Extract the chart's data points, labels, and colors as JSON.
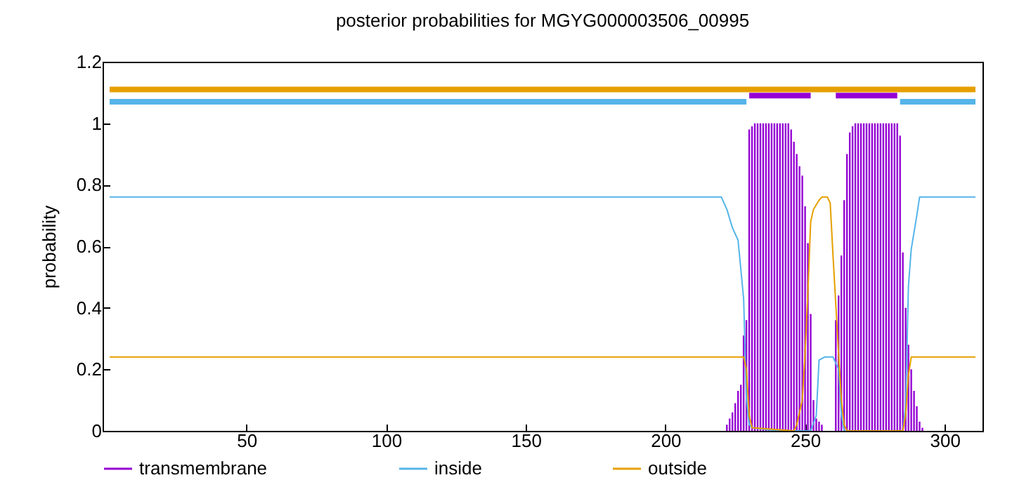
{
  "chart_data": {
    "type": "line",
    "title": "posterior probabilities for MGYG000003506_00995",
    "ylabel": "probability",
    "xlim": [
      1,
      311
    ],
    "xticks": [
      50,
      100,
      150,
      200,
      250,
      300
    ],
    "ylim": [
      0,
      1.2
    ],
    "yticks": [
      0,
      0.2,
      0.4,
      0.6,
      0.8,
      1,
      1.2
    ],
    "legend": "bottom",
    "series": [
      {
        "name": "transmembrane",
        "type": "bar",
        "color": "#9400d3",
        "x": [
          222,
          223,
          224,
          225,
          226,
          227,
          228,
          229,
          230,
          231,
          232,
          233,
          234,
          235,
          236,
          237,
          238,
          239,
          240,
          241,
          242,
          243,
          244,
          245,
          246,
          247,
          248,
          249,
          250,
          251,
          252,
          253,
          254,
          255,
          256,
          261,
          262,
          263,
          264,
          265,
          266,
          267,
          268,
          269,
          270,
          271,
          272,
          273,
          274,
          275,
          276,
          277,
          278,
          279,
          280,
          281,
          282,
          283,
          284,
          285,
          286,
          287,
          288,
          289,
          290,
          291,
          292
        ],
        "values": [
          0.02,
          0.04,
          0.06,
          0.09,
          0.13,
          0.15,
          0.31,
          0.36,
          0.98,
          0.99,
          1,
          1,
          1,
          1,
          1,
          1,
          1,
          1,
          1,
          1,
          1,
          1,
          1,
          0.98,
          0.94,
          0.9,
          0.86,
          0.83,
          0.73,
          0.61,
          0.38,
          0.1,
          0.04,
          0.03,
          0.02,
          0.36,
          0.44,
          0.57,
          0.75,
          0.9,
          0.97,
          0.99,
          1,
          1,
          1,
          1,
          1,
          1,
          1,
          1,
          1,
          1,
          1,
          1,
          1,
          1,
          1,
          1,
          0.96,
          0.58,
          0.4,
          0.28,
          0.2,
          0.13,
          0.08,
          0.03,
          0.01
        ]
      },
      {
        "name": "inside",
        "color": "#56b4e9",
        "x": [
          1,
          220,
          222,
          224,
          226,
          228,
          229,
          230,
          231,
          240,
          252,
          254,
          255,
          257,
          260,
          262,
          263,
          264,
          285,
          286,
          287,
          288,
          290,
          291,
          311
        ],
        "values": [
          0.76,
          0.76,
          0.72,
          0.66,
          0.62,
          0.43,
          0.1,
          0.02,
          0.01,
          0,
          0,
          0.05,
          0.23,
          0.24,
          0.24,
          0.2,
          0.05,
          0,
          0,
          0.08,
          0.47,
          0.59,
          0.7,
          0.76,
          0.76
        ]
      },
      {
        "name": "outside",
        "color": "#e69f00",
        "x": [
          1,
          228,
          229,
          230,
          231,
          246,
          247,
          249,
          250,
          251,
          252,
          253,
          255,
          256,
          258,
          259,
          260,
          261,
          262,
          263,
          264,
          265,
          285,
          286,
          287,
          288,
          311
        ],
        "values": [
          0.24,
          0.24,
          0.2,
          0.05,
          0.01,
          0,
          0.02,
          0.1,
          0.25,
          0.45,
          0.68,
          0.72,
          0.75,
          0.76,
          0.76,
          0.74,
          0.57,
          0.41,
          0.25,
          0.1,
          0.02,
          0,
          0,
          0.05,
          0.18,
          0.24,
          0.24
        ]
      },
      {
        "color": "#e69f00",
        "x": [
          1,
          311
        ],
        "values": [
          1.11,
          1.11
        ]
      },
      {
        "color": "#56b4e9",
        "x": [
          1,
          229
        ],
        "values": [
          1.07,
          1.07
        ]
      },
      {
        "color": "#56b4e9",
        "x": [
          284,
          311
        ],
        "values": [
          1.07,
          1.07
        ]
      },
      {
        "color": "#9400d3",
        "x": [
          230,
          252
        ],
        "values": [
          1.09,
          1.09
        ]
      },
      {
        "color": "#9400d3",
        "x": [
          261,
          283
        ],
        "values": [
          1.09,
          1.09
        ]
      }
    ]
  }
}
